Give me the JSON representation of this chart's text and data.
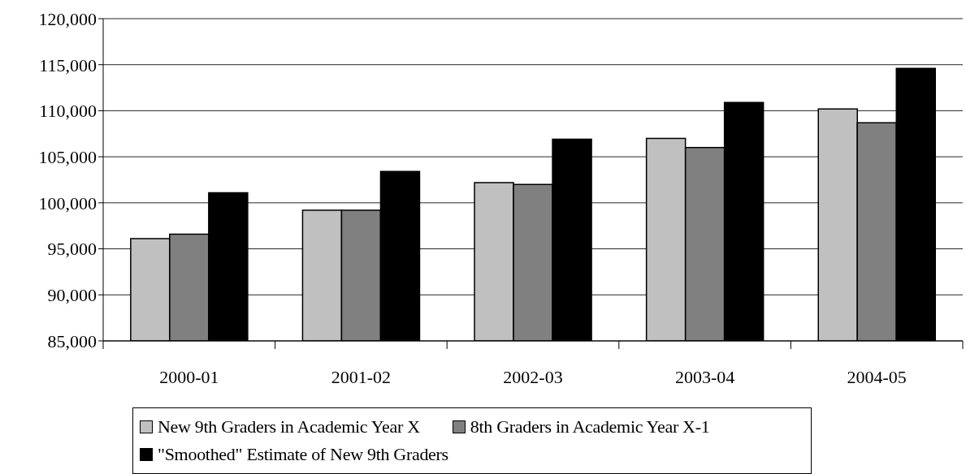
{
  "chart_data": {
    "type": "bar",
    "categories": [
      "2000-01",
      "2001-02",
      "2002-03",
      "2003-04",
      "2004-05"
    ],
    "series": [
      {
        "name": "New 9th Graders in Academic Year X",
        "color": "#c0c0c0",
        "values": [
          96100,
          99200,
          102200,
          107000,
          110200
        ]
      },
      {
        "name": "8th Graders in Academic Year X-1",
        "color": "#808080",
        "values": [
          96600,
          99200,
          102000,
          106000,
          108700
        ]
      },
      {
        "name": "\"Smoothed\" Estimate of New 9th Graders",
        "color": "#000000",
        "values": [
          101100,
          103400,
          106900,
          110900,
          114600
        ]
      }
    ],
    "ylim": [
      85000,
      120000
    ],
    "yticks": [
      {
        "value": 85000,
        "label": "85,000"
      },
      {
        "value": 90000,
        "label": "90,000"
      },
      {
        "value": 95000,
        "label": "95,000"
      },
      {
        "value": 100000,
        "label": "100,000"
      },
      {
        "value": 105000,
        "label": "105,000"
      },
      {
        "value": 110000,
        "label": "110,000"
      },
      {
        "value": 115000,
        "label": "115,000"
      },
      {
        "value": 120000,
        "label": "120,000"
      }
    ],
    "grid": "y",
    "legend": "bottom"
  }
}
